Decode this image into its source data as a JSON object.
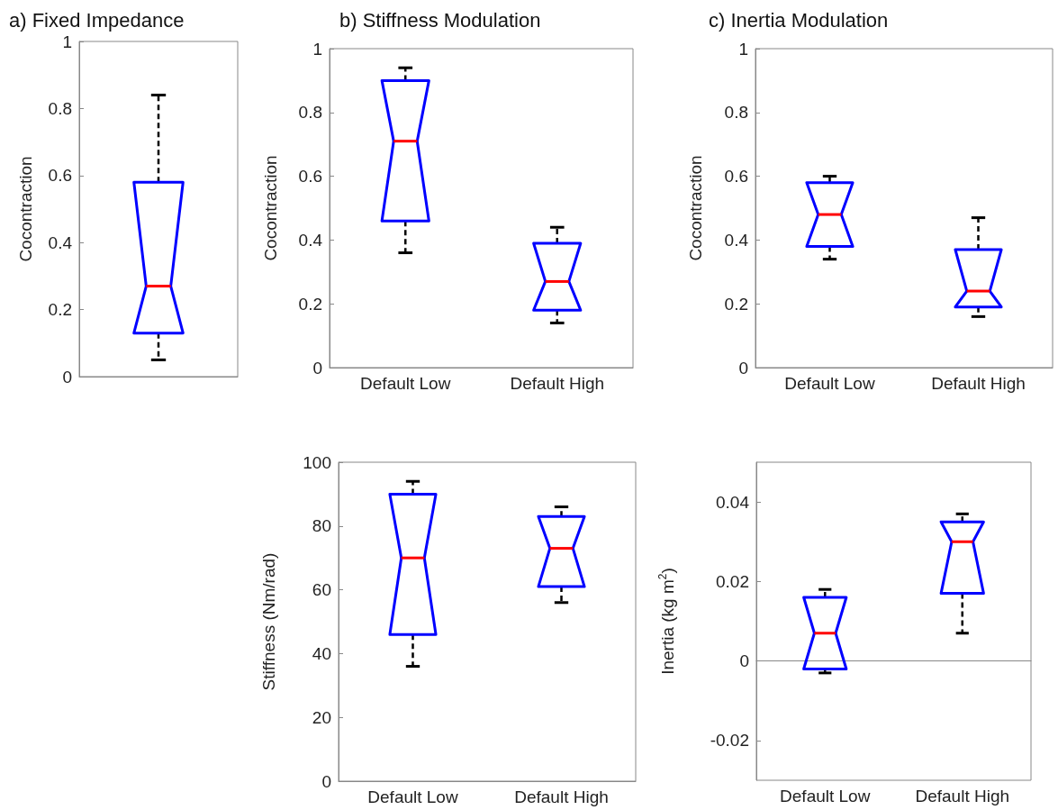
{
  "chart_data": [
    {
      "type": "box",
      "title": "a) Fixed Impedance",
      "ylabel": "Cocontraction",
      "categories": [
        null
      ],
      "ylim": [
        0,
        1
      ],
      "yticks": [
        0,
        0.2,
        0.4,
        0.6,
        0.8,
        1
      ],
      "tick_labels": "y",
      "series": [
        {
          "color": "#0000ff",
          "boxes": [
            {
              "low": 0.05,
              "q1": 0.13,
              "median": 0.27,
              "q3": 0.58,
              "high": 0.84
            }
          ]
        }
      ]
    },
    {
      "type": "box",
      "title": "b) Stiffness Modulation",
      "ylabel": "Cocontraction",
      "categories": [
        "Default Low",
        "Default High"
      ],
      "ylim": [
        0,
        1
      ],
      "yticks": [
        0,
        0.2,
        0.4,
        0.6,
        0.8,
        1
      ],
      "series": [
        {
          "color": "#0000ff",
          "boxes": [
            {
              "low": 0.36,
              "q1": 0.46,
              "median": 0.71,
              "q3": 0.9,
              "high": 0.94
            },
            {
              "low": 0.14,
              "q1": 0.18,
              "median": 0.27,
              "q3": 0.39,
              "high": 0.44
            }
          ]
        }
      ]
    },
    {
      "type": "box",
      "title": "c) Inertia Modulation",
      "ylabel": "Cocontraction",
      "categories": [
        "Default Low",
        "Default High"
      ],
      "ylim": [
        0,
        1
      ],
      "yticks": [
        0,
        0.2,
        0.4,
        0.6,
        0.8,
        1
      ],
      "series": [
        {
          "color": "#0000ff",
          "boxes": [
            {
              "low": 0.34,
              "q1": 0.38,
              "median": 0.48,
              "q3": 0.58,
              "high": 0.6
            },
            {
              "low": 0.16,
              "q1": 0.19,
              "median": 0.24,
              "q3": 0.37,
              "high": 0.47
            }
          ]
        }
      ]
    },
    {
      "type": "box",
      "ylabel": "Stiffness (Nm/rad)",
      "categories": [
        "Default Low",
        "Default High"
      ],
      "ylim": [
        0,
        100
      ],
      "yticks": [
        0,
        20,
        40,
        60,
        80,
        100
      ],
      "series": [
        {
          "color": "#0000ff",
          "boxes": [
            {
              "low": 36,
              "q1": 46,
              "median": 70,
              "q3": 90,
              "high": 94
            },
            {
              "low": 56,
              "q1": 61,
              "median": 73,
              "q3": 83,
              "high": 86
            }
          ]
        }
      ]
    },
    {
      "type": "box",
      "ylabel": "Inertia (kg m$^{2}$)",
      "categories": [
        "Default Low",
        "Default High"
      ],
      "ylim": [
        -0.03,
        0.05
      ],
      "yticks": [
        -0.02,
        0,
        0.02,
        0.04
      ],
      "series": [
        {
          "color": "#0000ff",
          "boxes": [
            {
              "low": -0.003,
              "q1": -0.002,
              "median": 0.007,
              "q3": 0.016,
              "high": 0.018
            },
            {
              "low": 0.007,
              "q1": 0.017,
              "median": 0.03,
              "q3": 0.035,
              "high": 0.037
            }
          ]
        }
      ]
    }
  ]
}
